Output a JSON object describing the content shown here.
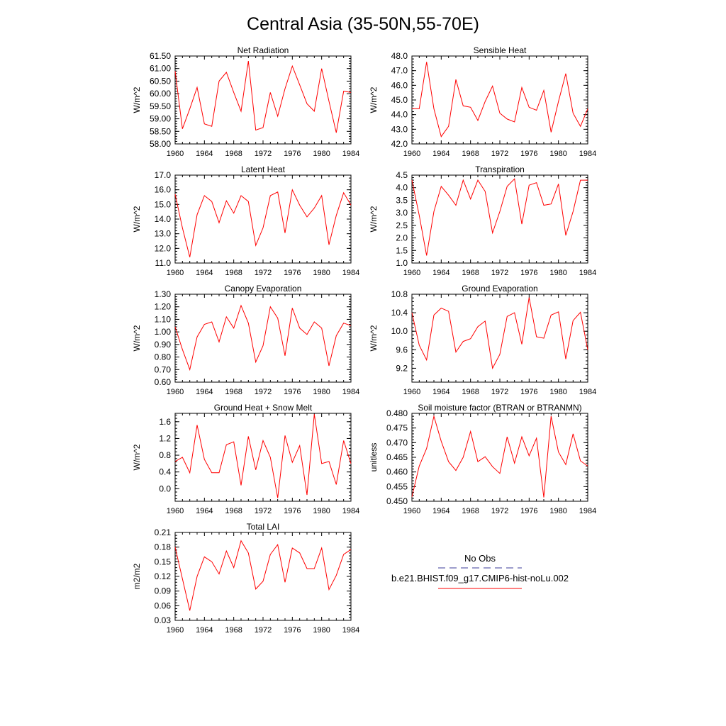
{
  "page_title": "Central Asia (35-50N,55-70E)",
  "x_ticks": [
    "1960",
    "1964",
    "1968",
    "1972",
    "1976",
    "1980",
    "1984"
  ],
  "legend": {
    "entries": [
      {
        "label": "No Obs",
        "color": "#3b3b9a",
        "dash": "dashed"
      },
      {
        "label": "b.e21.BHIST.f09_g17.CMIP6-hist-noLu.002",
        "color": "#ff0000",
        "dash": "solid"
      }
    ]
  },
  "colors": {
    "series": "#ff0000",
    "axes": "#000000"
  },
  "chart_data": [
    {
      "type": "line",
      "title": "Net Radiation",
      "xlabel": "",
      "ylabel": "W/m^2",
      "xlim": [
        1960,
        1984
      ],
      "ylim": [
        58.0,
        61.5
      ],
      "yticks": [
        "58.00",
        "58.50",
        "59.00",
        "59.50",
        "60.00",
        "60.50",
        "61.00",
        "61.50"
      ],
      "x": [
        1960,
        1961,
        1962,
        1963,
        1964,
        1965,
        1966,
        1967,
        1968,
        1969,
        1970,
        1971,
        1972,
        1973,
        1974,
        1975,
        1976,
        1977,
        1978,
        1979,
        1980,
        1981,
        1982,
        1983,
        1984
      ],
      "values": [
        60.9,
        58.6,
        59.4,
        60.25,
        58.8,
        58.7,
        60.5,
        60.85,
        60.05,
        59.3,
        61.3,
        58.55,
        58.65,
        60.05,
        59.1,
        60.2,
        61.1,
        60.35,
        59.6,
        59.3,
        61.0,
        59.7,
        58.45,
        60.1,
        60.05
      ]
    },
    {
      "type": "line",
      "title": "Sensible Heat",
      "xlabel": "",
      "ylabel": "W/m^2",
      "xlim": [
        1960,
        1984
      ],
      "ylim": [
        42.0,
        48.0
      ],
      "yticks": [
        "42.0",
        "43.0",
        "44.0",
        "45.0",
        "46.0",
        "47.0",
        "48.0"
      ],
      "x": [
        1960,
        1961,
        1962,
        1963,
        1964,
        1965,
        1966,
        1967,
        1968,
        1969,
        1970,
        1971,
        1972,
        1973,
        1974,
        1975,
        1976,
        1977,
        1978,
        1979,
        1980,
        1981,
        1982,
        1983,
        1984
      ],
      "values": [
        44.4,
        44.4,
        47.6,
        44.4,
        42.5,
        43.2,
        46.4,
        44.6,
        44.5,
        43.6,
        44.9,
        45.95,
        44.1,
        43.7,
        43.5,
        45.85,
        44.5,
        44.3,
        45.65,
        42.8,
        44.9,
        46.8,
        44.1,
        43.2,
        44.4
      ]
    },
    {
      "type": "line",
      "title": "Latent Heat",
      "xlabel": "",
      "ylabel": "W/m^2",
      "xlim": [
        1960,
        1984
      ],
      "ylim": [
        11.0,
        17.0
      ],
      "yticks": [
        "11.0",
        "12.0",
        "13.0",
        "14.0",
        "15.0",
        "16.0",
        "17.0"
      ],
      "x": [
        1960,
        1961,
        1962,
        1963,
        1964,
        1965,
        1966,
        1967,
        1968,
        1969,
        1970,
        1971,
        1972,
        1973,
        1974,
        1975,
        1976,
        1977,
        1978,
        1979,
        1980,
        1981,
        1982,
        1983,
        1984
      ],
      "values": [
        15.7,
        13.4,
        11.4,
        14.3,
        15.6,
        15.2,
        13.75,
        15.25,
        14.4,
        15.6,
        15.2,
        12.2,
        13.4,
        15.6,
        15.85,
        13.05,
        16.0,
        14.95,
        14.15,
        14.75,
        15.6,
        12.25,
        14.25,
        15.8,
        14.95
      ]
    },
    {
      "type": "line",
      "title": "Transpiration",
      "xlabel": "",
      "ylabel": "W/m^2",
      "xlim": [
        1960,
        1984
      ],
      "ylim": [
        1.0,
        4.5
      ],
      "yticks": [
        "1.0",
        "1.5",
        "2.0",
        "2.5",
        "3.0",
        "3.5",
        "4.0",
        "4.5"
      ],
      "x": [
        1960,
        1961,
        1962,
        1963,
        1964,
        1965,
        1966,
        1967,
        1968,
        1969,
        1970,
        1971,
        1972,
        1973,
        1974,
        1975,
        1976,
        1977,
        1978,
        1979,
        1980,
        1981,
        1982,
        1983,
        1984
      ],
      "values": [
        4.3,
        2.9,
        1.3,
        3.05,
        4.05,
        3.7,
        3.3,
        4.3,
        3.55,
        4.3,
        3.85,
        2.2,
        3.05,
        4.05,
        4.35,
        2.55,
        4.1,
        4.2,
        3.3,
        3.35,
        4.15,
        2.1,
        3.05,
        4.3,
        4.3
      ]
    },
    {
      "type": "line",
      "title": "Canopy Evaporation",
      "xlabel": "",
      "ylabel": "W/m^2",
      "xlim": [
        1960,
        1984
      ],
      "ylim": [
        0.6,
        1.3
      ],
      "yticks": [
        "0.60",
        "0.70",
        "0.80",
        "0.90",
        "1.00",
        "1.10",
        "1.20",
        "1.30"
      ],
      "x": [
        1960,
        1961,
        1962,
        1963,
        1964,
        1965,
        1966,
        1967,
        1968,
        1969,
        1970,
        1971,
        1972,
        1973,
        1974,
        1975,
        1976,
        1977,
        1978,
        1979,
        1980,
        1981,
        1982,
        1983,
        1984
      ],
      "values": [
        1.04,
        0.86,
        0.7,
        0.96,
        1.06,
        1.08,
        0.92,
        1.12,
        1.03,
        1.21,
        1.07,
        0.76,
        0.89,
        1.2,
        1.11,
        0.81,
        1.19,
        1.03,
        0.98,
        1.08,
        1.03,
        0.73,
        0.97,
        1.07,
        1.05
      ]
    },
    {
      "type": "line",
      "title": "Ground Evaporation",
      "xlabel": "",
      "ylabel": "W/m^2",
      "xlim": [
        1960,
        1984
      ],
      "ylim": [
        8.9,
        10.8
      ],
      "yticks": [
        "9.2",
        "9.6",
        "10.0",
        "10.4",
        "10.8"
      ],
      "x": [
        1960,
        1961,
        1962,
        1963,
        1964,
        1965,
        1966,
        1967,
        1968,
        1969,
        1970,
        1971,
        1972,
        1973,
        1974,
        1975,
        1976,
        1977,
        1978,
        1979,
        1980,
        1981,
        1982,
        1983,
        1984
      ],
      "values": [
        10.4,
        9.7,
        9.38,
        10.35,
        10.5,
        10.43,
        9.55,
        9.78,
        9.84,
        10.1,
        10.22,
        9.2,
        9.5,
        10.32,
        10.4,
        9.72,
        10.73,
        9.88,
        9.85,
        10.35,
        10.42,
        9.4,
        10.23,
        10.41,
        9.6
      ]
    },
    {
      "type": "line",
      "title": "Ground Heat + Snow Melt",
      "xlabel": "",
      "ylabel": "W/m^2",
      "xlim": [
        1960,
        1984
      ],
      "ylim": [
        -0.3,
        1.8
      ],
      "yticks": [
        "0.0",
        "0.4",
        "0.8",
        "1.2",
        "1.6"
      ],
      "x": [
        1960,
        1961,
        1962,
        1963,
        1964,
        1965,
        1966,
        1967,
        1968,
        1969,
        1970,
        1971,
        1972,
        1973,
        1974,
        1975,
        1976,
        1977,
        1978,
        1979,
        1980,
        1981,
        1982,
        1983,
        1984
      ],
      "values": [
        0.65,
        0.75,
        0.38,
        1.52,
        0.7,
        0.38,
        0.38,
        1.05,
        1.12,
        0.08,
        1.25,
        0.45,
        1.15,
        0.75,
        -0.22,
        1.27,
        0.63,
        1.03,
        -0.15,
        1.78,
        0.6,
        0.65,
        0.1,
        1.15,
        0.6
      ]
    },
    {
      "type": "line",
      "title": "Soil moisture factor (BTRAN or BTRANMN)",
      "xlabel": "",
      "ylabel": "unitless",
      "xlim": [
        1960,
        1984
      ],
      "ylim": [
        0.45,
        0.48
      ],
      "yticks": [
        "0.450",
        "0.455",
        "0.460",
        "0.465",
        "0.470",
        "0.475",
        "0.480"
      ],
      "x": [
        1960,
        1961,
        1962,
        1963,
        1964,
        1965,
        1966,
        1967,
        1968,
        1969,
        1970,
        1971,
        1972,
        1973,
        1974,
        1975,
        1976,
        1977,
        1978,
        1979,
        1980,
        1981,
        1982,
        1983,
        1984
      ],
      "values": [
        0.4515,
        0.462,
        0.468,
        0.479,
        0.4705,
        0.4635,
        0.4605,
        0.465,
        0.4738,
        0.4635,
        0.4652,
        0.4618,
        0.4595,
        0.472,
        0.463,
        0.472,
        0.4655,
        0.4715,
        0.4513,
        0.479,
        0.4668,
        0.4625,
        0.473,
        0.4638,
        0.462
      ]
    },
    {
      "type": "line",
      "title": "Total LAI",
      "xlabel": "",
      "ylabel": "m2/m2",
      "xlim": [
        1960,
        1984
      ],
      "ylim": [
        0.03,
        0.21
      ],
      "yticks": [
        "0.03",
        "0.06",
        "0.09",
        "0.12",
        "0.15",
        "0.18",
        "0.21"
      ],
      "x": [
        1960,
        1961,
        1962,
        1963,
        1964,
        1965,
        1966,
        1967,
        1968,
        1969,
        1970,
        1971,
        1972,
        1973,
        1974,
        1975,
        1976,
        1977,
        1978,
        1979,
        1980,
        1981,
        1982,
        1983,
        1984
      ],
      "values": [
        0.18,
        0.115,
        0.05,
        0.12,
        0.16,
        0.15,
        0.125,
        0.172,
        0.138,
        0.193,
        0.168,
        0.094,
        0.11,
        0.165,
        0.185,
        0.108,
        0.178,
        0.168,
        0.136,
        0.136,
        0.178,
        0.093,
        0.122,
        0.165,
        0.175
      ]
    }
  ]
}
